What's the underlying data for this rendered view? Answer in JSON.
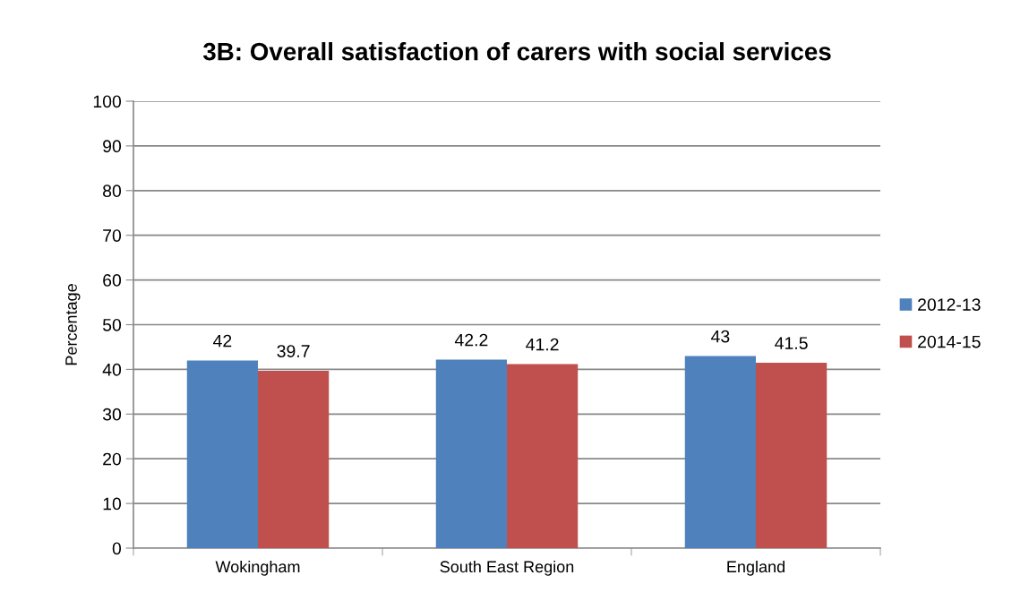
{
  "chart_data": {
    "type": "bar",
    "title": "3B: Overall satisfaction of carers with social services",
    "ylabel": "Percentage",
    "categories": [
      "Wokingham",
      "South East Region",
      "England"
    ],
    "series": [
      {
        "name": "2012-13",
        "color": "#4f81bd",
        "values": [
          42,
          42.2,
          43
        ]
      },
      {
        "name": "2014-15",
        "color": "#c0504d",
        "values": [
          39.7,
          41.2,
          41.5
        ]
      }
    ],
    "ylim": [
      0,
      100
    ],
    "yticks": [
      0,
      10,
      20,
      30,
      40,
      50,
      60,
      70,
      80,
      90,
      100
    ],
    "grid": "y",
    "legend": "right",
    "data_labels": true
  }
}
